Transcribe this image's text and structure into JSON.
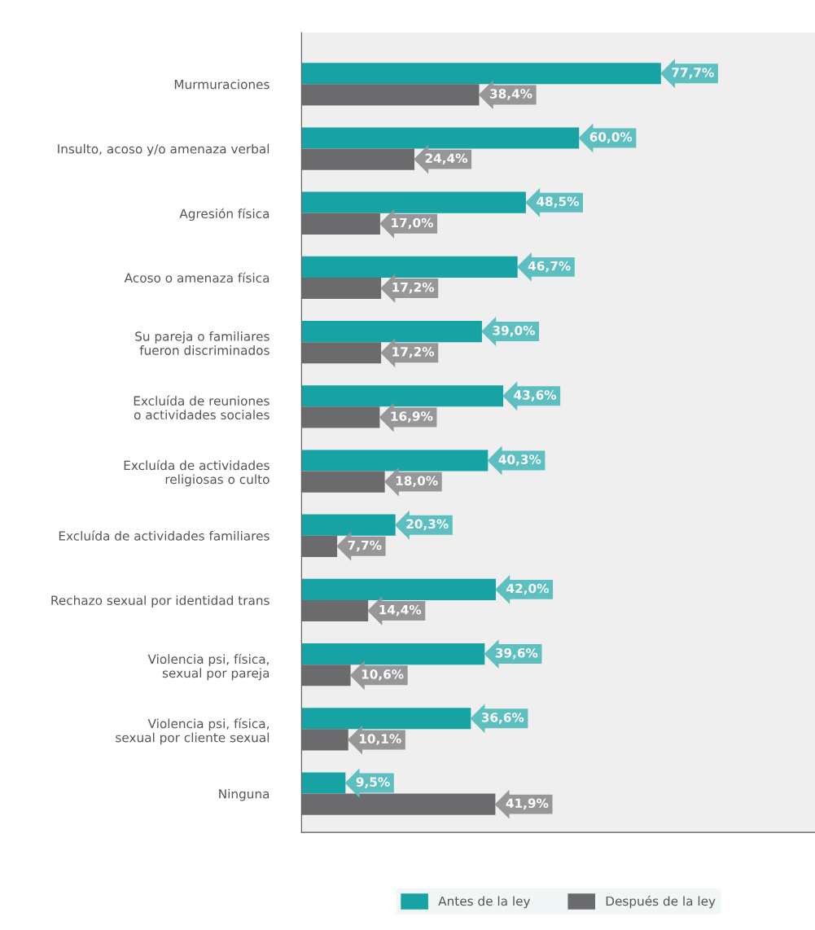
{
  "chart_data": {
    "type": "bar",
    "orientation": "horizontal",
    "categories": [
      "Murmuraciones",
      "Insulto, acoso y/o amenaza verbal",
      "Agresión física",
      "Acoso o amenaza física",
      "Su pareja o familiares\nfueron discriminados",
      "Excluída de reuniones\no actividades sociales",
      "Excluída de actividades\nreligiosas o culto",
      "Excluída de actividades familiares",
      "Rechazo sexual por identidad trans",
      "Violencia psi, física,\nsexual por pareja",
      "Violencia psi, física,\nsexual por cliente sexual",
      "Ninguna"
    ],
    "series": [
      {
        "name": "Antes de la ley",
        "color": "#17a3a3",
        "values": [
          77.7,
          60.0,
          48.5,
          46.7,
          39.0,
          43.6,
          40.3,
          20.3,
          42.0,
          39.6,
          36.6,
          9.5
        ],
        "value_labels": [
          "77,7%",
          "60,0%",
          "48,5%",
          "46,7%",
          "39,0%",
          "43,6%",
          "40,3%",
          "20,3%",
          "42,0%",
          "39,6%",
          "36,6%",
          "9,5%"
        ]
      },
      {
        "name": "Después de la ley",
        "color": "#6b6b6d",
        "values": [
          38.4,
          24.4,
          17.0,
          17.2,
          17.2,
          16.9,
          18.0,
          7.7,
          14.4,
          10.6,
          10.1,
          41.9
        ],
        "value_labels": [
          "38,4%",
          "24,4%",
          "17,0%",
          "17,2%",
          "17,2%",
          "16,9%",
          "18,0%",
          "7,7%",
          "14,4%",
          "10,6%",
          "10,1%",
          "41,9%"
        ]
      }
    ],
    "xlim": [
      0,
      111
    ],
    "tick_labels": "y",
    "grid": false,
    "legend": "bottom"
  }
}
